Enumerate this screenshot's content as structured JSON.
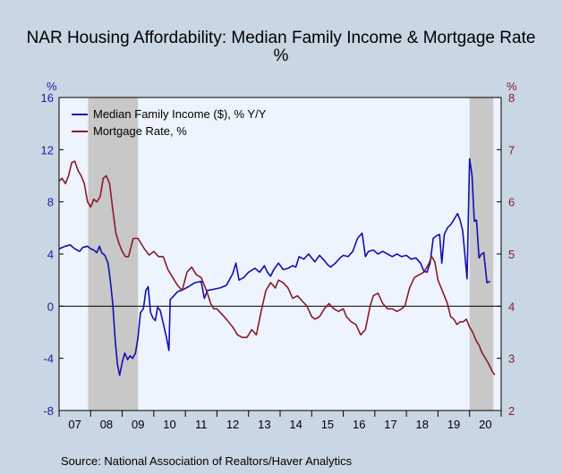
{
  "chart_data": {
    "type": "line",
    "title": "NAR Housing Affordability: Median Family Income & Mortgage Rate",
    "subtitle": "%",
    "left_axis": {
      "unit": "%",
      "ylim": [
        -8,
        16
      ],
      "ticks": [
        16,
        12,
        8,
        4,
        0,
        -4,
        -8
      ],
      "color": "#1a1aa6"
    },
    "right_axis": {
      "unit": "%",
      "ylim": [
        2,
        8
      ],
      "ticks": [
        8,
        7,
        6,
        5,
        4,
        3,
        2
      ],
      "color": "#8b1a2b"
    },
    "x_axis": {
      "range": [
        2007.0,
        2021.0
      ],
      "tick_labels": [
        "07",
        "08",
        "09",
        "10",
        "11",
        "12",
        "13",
        "14",
        "15",
        "16",
        "17",
        "18",
        "19",
        "20"
      ]
    },
    "recessions": [
      [
        2007.92,
        2009.5
      ],
      [
        2020.0,
        2020.75
      ]
    ],
    "legend": "top-left",
    "series": [
      {
        "name": "Median Family Income ($), % Y/Y",
        "axis": "left",
        "color": "#1010b0",
        "points": [
          [
            2007.0,
            4.4
          ],
          [
            2007.2,
            4.6
          ],
          [
            2007.35,
            4.7
          ],
          [
            2007.5,
            4.4
          ],
          [
            2007.65,
            4.2
          ],
          [
            2007.75,
            4.5
          ],
          [
            2007.9,
            4.6
          ],
          [
            2008.0,
            4.4
          ],
          [
            2008.1,
            4.3
          ],
          [
            2008.2,
            4.1
          ],
          [
            2008.28,
            4.6
          ],
          [
            2008.35,
            4.1
          ],
          [
            2008.45,
            3.9
          ],
          [
            2008.55,
            3.3
          ],
          [
            2008.62,
            2.0
          ],
          [
            2008.7,
            0.2
          ],
          [
            2008.78,
            -2.7
          ],
          [
            2008.85,
            -4.5
          ],
          [
            2008.92,
            -5.3
          ],
          [
            2009.0,
            -4.3
          ],
          [
            2009.08,
            -3.6
          ],
          [
            2009.17,
            -4.1
          ],
          [
            2009.25,
            -3.8
          ],
          [
            2009.33,
            -4.0
          ],
          [
            2009.42,
            -3.6
          ],
          [
            2009.5,
            -2.4
          ],
          [
            2009.58,
            -0.5
          ],
          [
            2009.67,
            -0.2
          ],
          [
            2009.75,
            1.2
          ],
          [
            2009.82,
            1.5
          ],
          [
            2009.9,
            -0.5
          ],
          [
            2009.97,
            -0.9
          ],
          [
            2010.05,
            -1.1
          ],
          [
            2010.12,
            -0.1
          ],
          [
            2010.2,
            -0.3
          ],
          [
            2010.3,
            -1.3
          ],
          [
            2010.4,
            -2.4
          ],
          [
            2010.48,
            -3.4
          ],
          [
            2010.52,
            0.5
          ],
          [
            2010.6,
            0.7
          ],
          [
            2010.75,
            1.1
          ],
          [
            2010.95,
            1.3
          ],
          [
            2011.1,
            1.5
          ],
          [
            2011.3,
            1.8
          ],
          [
            2011.5,
            1.9
          ],
          [
            2011.6,
            0.6
          ],
          [
            2011.7,
            1.2
          ],
          [
            2011.9,
            1.3
          ],
          [
            2012.1,
            1.4
          ],
          [
            2012.3,
            1.6
          ],
          [
            2012.5,
            2.5
          ],
          [
            2012.6,
            3.3
          ],
          [
            2012.7,
            2.0
          ],
          [
            2012.85,
            2.2
          ],
          [
            2013.0,
            2.6
          ],
          [
            2013.2,
            2.9
          ],
          [
            2013.35,
            2.6
          ],
          [
            2013.5,
            3.1
          ],
          [
            2013.6,
            2.6
          ],
          [
            2013.7,
            2.3
          ],
          [
            2013.8,
            2.8
          ],
          [
            2013.95,
            3.3
          ],
          [
            2014.1,
            2.8
          ],
          [
            2014.25,
            2.9
          ],
          [
            2014.4,
            3.1
          ],
          [
            2014.5,
            3.0
          ],
          [
            2014.6,
            3.8
          ],
          [
            2014.75,
            3.6
          ],
          [
            2014.9,
            4.0
          ],
          [
            2015.1,
            3.4
          ],
          [
            2015.25,
            3.9
          ],
          [
            2015.4,
            3.5
          ],
          [
            2015.5,
            3.2
          ],
          [
            2015.6,
            3.0
          ],
          [
            2015.75,
            3.3
          ],
          [
            2015.9,
            3.7
          ],
          [
            2016.0,
            3.9
          ],
          [
            2016.15,
            3.8
          ],
          [
            2016.3,
            4.2
          ],
          [
            2016.45,
            5.2
          ],
          [
            2016.6,
            5.6
          ],
          [
            2016.7,
            3.8
          ],
          [
            2016.8,
            4.2
          ],
          [
            2016.95,
            4.3
          ],
          [
            2017.1,
            4.0
          ],
          [
            2017.25,
            4.2
          ],
          [
            2017.4,
            4.0
          ],
          [
            2017.55,
            3.8
          ],
          [
            2017.7,
            4.0
          ],
          [
            2017.85,
            3.8
          ],
          [
            2018.0,
            3.9
          ],
          [
            2018.15,
            3.6
          ],
          [
            2018.3,
            3.7
          ],
          [
            2018.45,
            3.3
          ],
          [
            2018.55,
            2.7
          ],
          [
            2018.65,
            2.6
          ],
          [
            2018.75,
            3.3
          ],
          [
            2018.85,
            5.2
          ],
          [
            2018.95,
            5.4
          ],
          [
            2019.05,
            5.5
          ],
          [
            2019.12,
            3.3
          ],
          [
            2019.2,
            5.5
          ],
          [
            2019.3,
            6.0
          ],
          [
            2019.42,
            6.3
          ],
          [
            2019.52,
            6.7
          ],
          [
            2019.62,
            7.1
          ],
          [
            2019.7,
            6.6
          ],
          [
            2019.78,
            5.8
          ],
          [
            2019.85,
            4.0
          ],
          [
            2019.92,
            2.1
          ],
          [
            2020.0,
            11.3
          ],
          [
            2020.08,
            10.0
          ],
          [
            2020.15,
            6.5
          ],
          [
            2020.22,
            6.6
          ],
          [
            2020.3,
            3.7
          ],
          [
            2020.38,
            4.0
          ],
          [
            2020.45,
            4.1
          ],
          [
            2020.55,
            1.8
          ],
          [
            2020.65,
            1.9
          ]
        ]
      },
      {
        "name": "Mortgage Rate, %",
        "axis": "right",
        "color": "#8b1a2b",
        "points": [
          [
            2007.0,
            6.4
          ],
          [
            2007.1,
            6.45
          ],
          [
            2007.2,
            6.35
          ],
          [
            2007.3,
            6.5
          ],
          [
            2007.4,
            6.75
          ],
          [
            2007.5,
            6.78
          ],
          [
            2007.6,
            6.6
          ],
          [
            2007.7,
            6.5
          ],
          [
            2007.8,
            6.35
          ],
          [
            2007.9,
            6.0
          ],
          [
            2008.0,
            5.9
          ],
          [
            2008.1,
            6.05
          ],
          [
            2008.2,
            6.0
          ],
          [
            2008.3,
            6.1
          ],
          [
            2008.4,
            6.45
          ],
          [
            2008.5,
            6.5
          ],
          [
            2008.6,
            6.35
          ],
          [
            2008.7,
            5.85
          ],
          [
            2008.8,
            5.4
          ],
          [
            2008.9,
            5.2
          ],
          [
            2009.0,
            5.05
          ],
          [
            2009.1,
            4.95
          ],
          [
            2009.2,
            4.95
          ],
          [
            2009.35,
            5.3
          ],
          [
            2009.5,
            5.3
          ],
          [
            2009.7,
            5.1
          ],
          [
            2009.85,
            4.98
          ],
          [
            2010.0,
            5.05
          ],
          [
            2010.15,
            4.95
          ],
          [
            2010.3,
            4.95
          ],
          [
            2010.45,
            4.7
          ],
          [
            2010.6,
            4.55
          ],
          [
            2010.75,
            4.4
          ],
          [
            2010.9,
            4.3
          ],
          [
            2011.05,
            4.65
          ],
          [
            2011.2,
            4.75
          ],
          [
            2011.35,
            4.6
          ],
          [
            2011.5,
            4.55
          ],
          [
            2011.7,
            4.25
          ],
          [
            2011.8,
            4.05
          ],
          [
            2011.9,
            3.95
          ],
          [
            2012.0,
            3.95
          ],
          [
            2012.15,
            3.85
          ],
          [
            2012.3,
            3.75
          ],
          [
            2012.5,
            3.6
          ],
          [
            2012.65,
            3.45
          ],
          [
            2012.8,
            3.4
          ],
          [
            2012.95,
            3.4
          ],
          [
            2013.1,
            3.55
          ],
          [
            2013.25,
            3.45
          ],
          [
            2013.4,
            3.9
          ],
          [
            2013.55,
            4.3
          ],
          [
            2013.7,
            4.45
          ],
          [
            2013.85,
            4.35
          ],
          [
            2013.95,
            4.5
          ],
          [
            2014.1,
            4.45
          ],
          [
            2014.25,
            4.35
          ],
          [
            2014.4,
            4.15
          ],
          [
            2014.55,
            4.2
          ],
          [
            2014.7,
            4.1
          ],
          [
            2014.85,
            4.0
          ],
          [
            2015.0,
            3.8
          ],
          [
            2015.1,
            3.75
          ],
          [
            2015.25,
            3.8
          ],
          [
            2015.4,
            3.95
          ],
          [
            2015.55,
            4.05
          ],
          [
            2015.7,
            3.95
          ],
          [
            2015.85,
            3.9
          ],
          [
            2016.0,
            3.95
          ],
          [
            2016.1,
            3.8
          ],
          [
            2016.25,
            3.7
          ],
          [
            2016.4,
            3.65
          ],
          [
            2016.55,
            3.45
          ],
          [
            2016.7,
            3.55
          ],
          [
            2016.85,
            4.0
          ],
          [
            2016.95,
            4.2
          ],
          [
            2017.1,
            4.25
          ],
          [
            2017.25,
            4.05
          ],
          [
            2017.4,
            3.95
          ],
          [
            2017.55,
            3.95
          ],
          [
            2017.7,
            3.9
          ],
          [
            2017.85,
            3.95
          ],
          [
            2017.95,
            4.0
          ],
          [
            2018.1,
            4.35
          ],
          [
            2018.25,
            4.55
          ],
          [
            2018.4,
            4.6
          ],
          [
            2018.55,
            4.65
          ],
          [
            2018.7,
            4.8
          ],
          [
            2018.8,
            4.95
          ],
          [
            2018.9,
            4.85
          ],
          [
            2019.0,
            4.5
          ],
          [
            2019.1,
            4.35
          ],
          [
            2019.2,
            4.2
          ],
          [
            2019.3,
            4.05
          ],
          [
            2019.4,
            3.8
          ],
          [
            2019.5,
            3.75
          ],
          [
            2019.6,
            3.65
          ],
          [
            2019.7,
            3.7
          ],
          [
            2019.8,
            3.7
          ],
          [
            2019.9,
            3.75
          ],
          [
            2020.0,
            3.6
          ],
          [
            2020.1,
            3.5
          ],
          [
            2020.2,
            3.35
          ],
          [
            2020.3,
            3.25
          ],
          [
            2020.4,
            3.1
          ],
          [
            2020.5,
            3.0
          ],
          [
            2020.6,
            2.9
          ],
          [
            2020.72,
            2.75
          ],
          [
            2020.8,
            2.68
          ]
        ]
      }
    ]
  },
  "source": "Source:  National Association of Realtors/Haver Analytics"
}
